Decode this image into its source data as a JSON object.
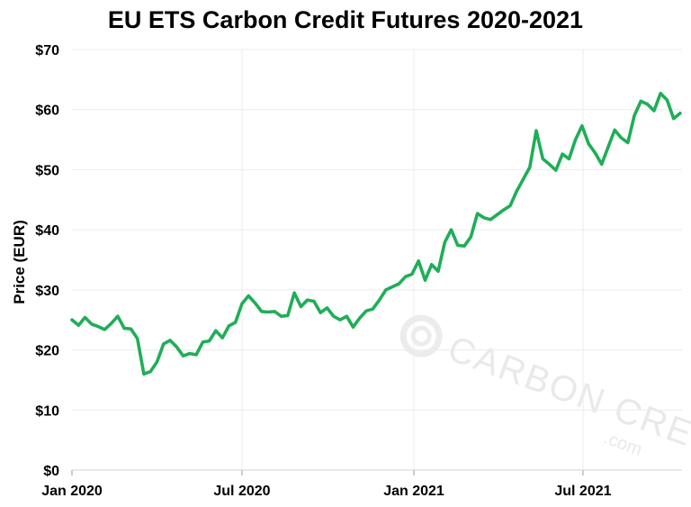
{
  "chart_data": {
    "type": "line",
    "title": "EU ETS Carbon Credit Futures 2020-2021",
    "xlabel": "",
    "ylabel": "Price (EUR)",
    "ylim": [
      0,
      70
    ],
    "yticks": [
      0,
      10,
      20,
      30,
      40,
      50,
      60,
      70
    ],
    "ytick_labels": [
      "$0",
      "$10",
      "$20",
      "$30",
      "$40",
      "$50",
      "$60",
      "$70"
    ],
    "xlim": [
      "2020-01-01",
      "2021-10-15"
    ],
    "xticks": [
      "2020-01-01",
      "2020-07-01",
      "2021-01-01",
      "2021-07-01"
    ],
    "xtick_labels": [
      "Jan 2020",
      "Jul 2020",
      "Jan 2021",
      "Jul 2021"
    ],
    "grid": true,
    "legend": "none",
    "series": [
      {
        "color": "#1fae57",
        "x": [
          "2020-01-01",
          "2020-01-08",
          "2020-01-15",
          "2020-01-22",
          "2020-01-29",
          "2020-02-05",
          "2020-02-12",
          "2020-02-19",
          "2020-02-26",
          "2020-03-04",
          "2020-03-11",
          "2020-03-18",
          "2020-03-25",
          "2020-04-01",
          "2020-04-08",
          "2020-04-15",
          "2020-04-22",
          "2020-04-29",
          "2020-05-06",
          "2020-05-13",
          "2020-05-20",
          "2020-05-27",
          "2020-06-03",
          "2020-06-10",
          "2020-06-17",
          "2020-06-24",
          "2020-07-01",
          "2020-07-08",
          "2020-07-15",
          "2020-07-22",
          "2020-07-29",
          "2020-08-05",
          "2020-08-12",
          "2020-08-19",
          "2020-08-26",
          "2020-09-02",
          "2020-09-09",
          "2020-09-16",
          "2020-09-23",
          "2020-09-30",
          "2020-10-07",
          "2020-10-14",
          "2020-10-21",
          "2020-10-28",
          "2020-11-04",
          "2020-11-11",
          "2020-11-18",
          "2020-11-25",
          "2020-12-02",
          "2020-12-09",
          "2020-12-16",
          "2020-12-23",
          "2020-12-30",
          "2021-01-06",
          "2021-01-13",
          "2021-01-20",
          "2021-01-27",
          "2021-02-03",
          "2021-02-10",
          "2021-02-17",
          "2021-02-24",
          "2021-03-03",
          "2021-03-10",
          "2021-03-17",
          "2021-03-24",
          "2021-03-31",
          "2021-04-07",
          "2021-04-14",
          "2021-04-21",
          "2021-04-28",
          "2021-05-05",
          "2021-05-12",
          "2021-05-19",
          "2021-05-26",
          "2021-06-02",
          "2021-06-09",
          "2021-06-16",
          "2021-06-23",
          "2021-06-30",
          "2021-07-07",
          "2021-07-14",
          "2021-07-21",
          "2021-07-28",
          "2021-08-04",
          "2021-08-11",
          "2021-08-18",
          "2021-08-25",
          "2021-09-01",
          "2021-09-08",
          "2021-09-15",
          "2021-09-22",
          "2021-09-29",
          "2021-10-06",
          "2021-10-13"
        ],
        "values": [
          25.0,
          24.1,
          25.4,
          24.3,
          23.9,
          23.4,
          24.4,
          25.6,
          23.6,
          23.5,
          21.9,
          16.0,
          16.4,
          18.0,
          21.0,
          21.6,
          20.5,
          19.0,
          19.4,
          19.2,
          21.3,
          21.5,
          23.2,
          22.0,
          24.0,
          24.6,
          27.7,
          29.0,
          27.8,
          26.4,
          26.3,
          26.4,
          25.6,
          25.7,
          29.5,
          27.2,
          28.3,
          28.1,
          26.2,
          27.0,
          25.6,
          25.0,
          25.6,
          23.8,
          25.3,
          26.5,
          26.8,
          28.3,
          30.0,
          30.5,
          31.0,
          32.2,
          32.6,
          34.8,
          31.6,
          34.2,
          33.1,
          37.9,
          40.0,
          37.4,
          37.3,
          38.8,
          42.7,
          42.0,
          41.7,
          42.5,
          43.3,
          44.0,
          46.4,
          48.4,
          50.4,
          56.5,
          51.8,
          50.9,
          49.9,
          52.6,
          51.8,
          55.0,
          57.3,
          54.3,
          52.8,
          50.9,
          53.8,
          56.6,
          55.3,
          54.5,
          59.0,
          61.4,
          60.9,
          59.8,
          62.7,
          61.6,
          58.5,
          59.4
        ]
      }
    ]
  },
  "watermark": {
    "brand": "CARBON CREDITS",
    "sub": ".com"
  }
}
